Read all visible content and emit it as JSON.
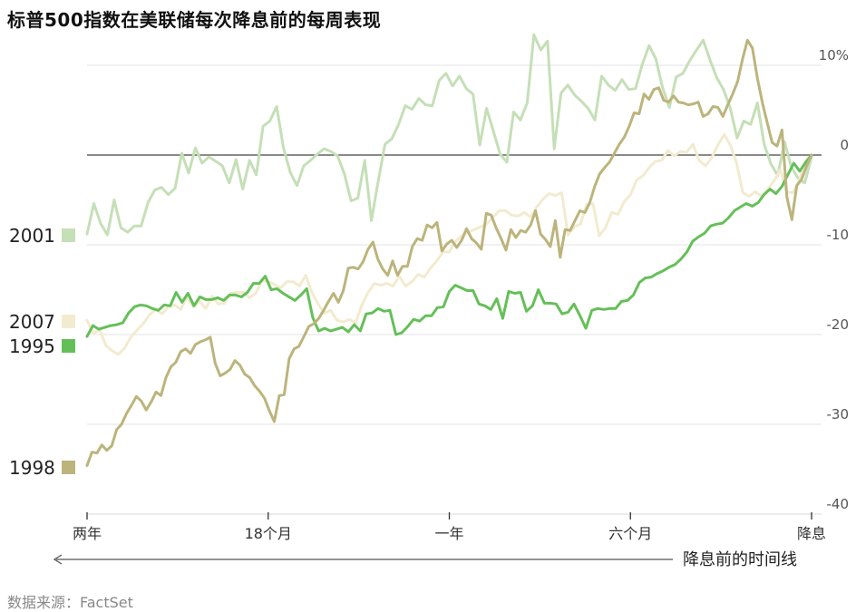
{
  "title": "标普500指数在美联储每次降息前的每周表现",
  "source": "数据来源：FactSet",
  "timeline_label": "降息前的时间线",
  "chart_data": {
    "type": "line",
    "title": "标普500指数在美联储每次降息前的每周表现",
    "xlabel": "",
    "ylabel": "",
    "ylim": [
      -40,
      14
    ],
    "xlim": [
      0,
      104
    ],
    "x_ticks": [
      {
        "x": 0,
        "label": "两年"
      },
      {
        "x": 26,
        "label": "18个月"
      },
      {
        "x": 52,
        "label": "一年"
      },
      {
        "x": 78,
        "label": "六个月"
      },
      {
        "x": 104,
        "label": "降息"
      }
    ],
    "y_ticks": [
      {
        "y": 10,
        "label": "10%"
      },
      {
        "y": 0,
        "label": "0"
      },
      {
        "y": -10,
        "label": "-10"
      },
      {
        "y": -20,
        "label": "-20"
      },
      {
        "y": -30,
        "label": "-30"
      },
      {
        "y": -40,
        "label": "-40"
      }
    ],
    "grid": true,
    "zero_line": true,
    "series": [
      {
        "name": "2001",
        "color": "#c5dfb7",
        "values": [
          -8.8,
          -5.4,
          -7.6,
          -8.9,
          -5,
          -8.1,
          -8.6,
          -7.9,
          -7.9,
          -5.3,
          -3.9,
          -3.6,
          -4.4,
          -3.7,
          0.2,
          -2,
          0.8,
          -0.9,
          -0.2,
          -0.7,
          -1.2,
          -3.1,
          -0.5,
          -3.8,
          -0.6,
          -2.2,
          3.2,
          3.8,
          5.4,
          0.8,
          -1.9,
          -3.4,
          -1.2,
          -0.6,
          0.1,
          0.7,
          0.4,
          -0.1,
          -2.1,
          -5.1,
          -4.8,
          -0.6,
          -7.3,
          -2.9,
          1.2,
          1.8,
          3.4,
          5.5,
          5.1,
          6.3,
          5.6,
          5.5,
          8.3,
          9.1,
          7.7,
          8.8,
          7.4,
          6.8,
          1.1,
          5.2,
          2.7,
          0.1,
          -0.8,
          4.8,
          3.9,
          5.8,
          13.4,
          11.7,
          12.7,
          0.7,
          6.9,
          7.8,
          6.7,
          6,
          5.2,
          3.9,
          8.8,
          7.8,
          7.2,
          8.4,
          7.3,
          7.4,
          10.1,
          12.2,
          10.7,
          7.5,
          5.3,
          8.7,
          9.1,
          10.5,
          11.7,
          12.8,
          10.6,
          8.6,
          7.3,
          5.2,
          1.9,
          3.8,
          3.4,
          5.8,
          1.2,
          -1,
          -2.3,
          1.5,
          -1.3,
          -2.6,
          -3.1,
          -0.2
        ]
      },
      {
        "name": "2007",
        "color": "#f2ebcf",
        "values": [
          -18.4,
          -19.9,
          -19.4,
          -21.2,
          -21.8,
          -22.2,
          -21.5,
          -20.3,
          -19.5,
          -18.8,
          -17.8,
          -17.2,
          -17.7,
          -16.9,
          -16.7,
          -17.2,
          -15.8,
          -16.9,
          -16.3,
          -17.1,
          -15.7,
          -16.6,
          -16.5,
          -15.4,
          -15.3,
          -15.3,
          -15.9,
          -15.4,
          -14,
          -14.1,
          -14.4,
          -14.8,
          -14.1,
          -14.1,
          -14.6,
          -13.4,
          -15.3,
          -16.6,
          -17.6,
          -17.3,
          -18.4,
          -18.6,
          -18.3,
          -18.7,
          -16.7,
          -15.3,
          -14.3,
          -14.5,
          -14.3,
          -14.6,
          -13.5,
          -14.6,
          -14.1,
          -13.3,
          -13.6,
          -12.6,
          -11.8,
          -10.8,
          -10.8,
          -9.6,
          -9,
          -8.6,
          -8.3,
          -8,
          -7.7,
          -6.9,
          -6.2,
          -6.2,
          -6.7,
          -6.8,
          -6.4,
          -6.9,
          -5.8,
          -4.9,
          -4.3,
          -4.5,
          -4.2,
          -8.9,
          -8,
          -7.7,
          -5.5,
          -5.4,
          -9,
          -8.1,
          -6.4,
          -6.6,
          -5.2,
          -4.4,
          -2.8,
          -2.3,
          -1.4,
          -0.7,
          -0.6,
          0.5,
          -0.1,
          0.4,
          0.3,
          1.2,
          -0.6,
          -1.2,
          -0.3,
          1.1,
          2.3,
          1.1,
          -0.9,
          -4.2,
          -4.6,
          -4.1,
          -4.6,
          -3.8,
          -2.9,
          -1.6,
          -4.1,
          -4.2,
          -2.9,
          -0.8,
          0
        ]
      },
      {
        "name": "1995",
        "color": "#65bf58",
        "values": [
          -20.2,
          -19,
          -19.4,
          -19.2,
          -19,
          -18.9,
          -18.7,
          -17.6,
          -16.9,
          -16.7,
          -16.8,
          -17.1,
          -17.3,
          -16.7,
          -16.8,
          -15.3,
          -16.4,
          -15.4,
          -16.8,
          -15.8,
          -16.1,
          -16.1,
          -15.9,
          -16.2,
          -15.6,
          -15.6,
          -15.8,
          -15.3,
          -14.3,
          -14.3,
          -13.5,
          -15,
          -14.9,
          -15.4,
          -15.8,
          -16.2,
          -15.6,
          -14.9,
          -18.1,
          -19.6,
          -19.3,
          -19.6,
          -19.4,
          -19.2,
          -19.7,
          -18.9,
          -19.6,
          -17.7,
          -17.6,
          -17.1,
          -17.4,
          -17.3,
          -20,
          -19.8,
          -19.1,
          -18.3,
          -18.5,
          -17.9,
          -17.9,
          -17,
          -16.9,
          -15.2,
          -14.5,
          -14.8,
          -15.1,
          -15.1,
          -16.6,
          -16.8,
          -17.2,
          -16,
          -18.2,
          -15.2,
          -15.4,
          -15.3,
          -17.4,
          -16.8,
          -15,
          -16.5,
          -16.5,
          -16.6,
          -17.7,
          -17.5,
          -16.6,
          -17.9,
          -19.3,
          -17.3,
          -17.1,
          -17.2,
          -17.1,
          -17.1,
          -16.3,
          -16.2,
          -15.6,
          -14.2,
          -13.7,
          -13.6,
          -13.2,
          -12.9,
          -12.5,
          -12.2,
          -11.6,
          -10.8,
          -9.6,
          -9.1,
          -8.7,
          -7.9,
          -7.7,
          -7.6,
          -7,
          -6.2,
          -5.8,
          -5.4,
          -5.7,
          -5.3,
          -4.4,
          -3.8,
          -4.3,
          -3.5,
          -2.2,
          -0.9,
          -1.8,
          -0.8,
          0
        ]
      },
      {
        "name": "1998",
        "color": "#bcb47c",
        "values": [
          -34.6,
          -33.1,
          -33.2,
          -32.3,
          -32.9,
          -32.4,
          -30.6,
          -30,
          -28.8,
          -27.9,
          -26.9,
          -27.4,
          -28.4,
          -27.5,
          -26.4,
          -26.8,
          -24.8,
          -23.6,
          -23.1,
          -21.9,
          -21.6,
          -22.1,
          -21.1,
          -20.8,
          -20.6,
          -20.3,
          -23.2,
          -24.6,
          -24.3,
          -23.9,
          -22.9,
          -23.4,
          -24.4,
          -24.8,
          -25.7,
          -26.3,
          -27.1,
          -28.5,
          -29.7,
          -26.8,
          -26.7,
          -22.7,
          -21.6,
          -21.3,
          -20.2,
          -19.1,
          -18.8,
          -18.2,
          -17.3,
          -16.3,
          -15.4,
          -16.4,
          -15.1,
          -12.6,
          -12.5,
          -12.7,
          -11.9,
          -10.5,
          -9.7,
          -11.6,
          -12.7,
          -13.4,
          -11.8,
          -13.4,
          -12.4,
          -12.4,
          -10.2,
          -9.3,
          -9.5,
          -7.8,
          -8.1,
          -7.5,
          -10.7,
          -9.9,
          -9.5,
          -10.3,
          -9.5,
          -8.2,
          -9.3,
          -9.8,
          -10.5,
          -6.5,
          -6.7,
          -8.1,
          -9.3,
          -10.6,
          -8.3,
          -9.2,
          -8.4,
          -8.6,
          -7.8,
          -6.2,
          -8.8,
          -9.4,
          -10.2,
          -7.3,
          -11.4,
          -8.3,
          -8.4,
          -7.3,
          -6.2,
          -6.4,
          -5.3,
          -3.5,
          -2.1,
          -1.4,
          -0.8,
          0.2,
          1.2,
          2,
          3.2,
          4.7,
          4.6,
          6.8,
          6.2,
          7.3,
          7.5,
          6.1,
          5.9,
          6.6,
          5.9,
          5.8,
          5.6,
          5.7,
          5.9,
          4.3,
          4.6,
          5.4,
          5.3,
          4.3,
          5.6,
          6.8,
          8.2,
          10.7,
          12.8,
          11.9,
          8.6,
          5.9,
          3.6,
          1.4,
          1,
          2.8,
          -4.7,
          -7.2,
          -3.4,
          -2.7,
          -1.2,
          0
        ]
      }
    ]
  }
}
